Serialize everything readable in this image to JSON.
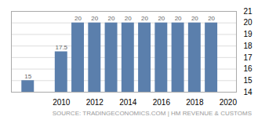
{
  "chart_data": {
    "type": "bar",
    "x": [
      2008,
      2010,
      2011,
      2012,
      2013,
      2014,
      2015,
      2016,
      2017,
      2018,
      2019
    ],
    "values": [
      15,
      17.5,
      20,
      20,
      20,
      20,
      20,
      20,
      20,
      20,
      20
    ],
    "color": "#5b7fac",
    "data_labels": true,
    "xlim": [
      2007.0,
      2020.5
    ],
    "xticks": [
      2010,
      2012,
      2014,
      2016,
      2018,
      2020
    ],
    "ylim": [
      14,
      21
    ],
    "yticks": [
      14,
      15,
      16,
      17,
      18,
      19,
      20,
      21
    ],
    "grid": true,
    "annotations": [
      "SOURCE: TRADINGECONOMICS.COM | HM REVENUE & CUSTOMS"
    ]
  }
}
